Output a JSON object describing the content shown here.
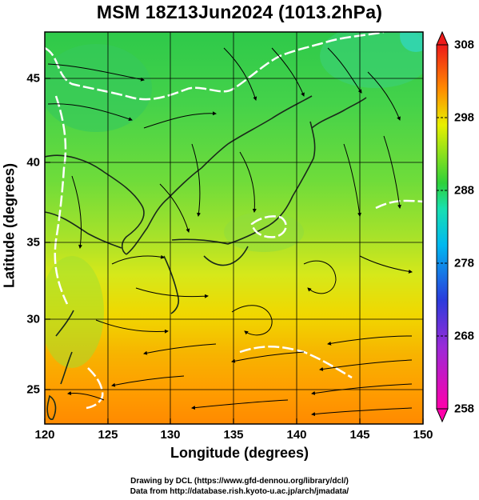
{
  "figure": {
    "title": "MSM 18Z13Jun2024 (1013.2hPa)",
    "xlabel": "Longitude (degrees)",
    "ylabel": "Latitude  (degrees)",
    "credit_line1": "Drawing by DCL (https://www.gfd-dennou.org/library/dcl/)",
    "credit_line2": "Data from http://database.rish.kyoto-u.ac.jp/arch/jmadata/"
  },
  "map": {
    "lon_range": [
      120,
      150
    ],
    "lat_range": [
      22.4,
      47.6
    ],
    "lon_ticks": [
      "120",
      "125",
      "130",
      "135",
      "140",
      "145",
      "150"
    ],
    "lat_ticks": [
      "25",
      "30",
      "35",
      "40",
      "45"
    ],
    "field": "temperature (K) shaded with streamlines",
    "colorbar": {
      "range": [
        258,
        308
      ],
      "ticks": [
        "308",
        "298",
        "288",
        "278",
        "268",
        "258"
      ],
      "colors": [
        "#ff00aa",
        "#2a3cdc",
        "#00e0e0",
        "#2fd13a",
        "#e8f000",
        "#ff8a00",
        "#ee1a1a"
      ]
    }
  }
}
